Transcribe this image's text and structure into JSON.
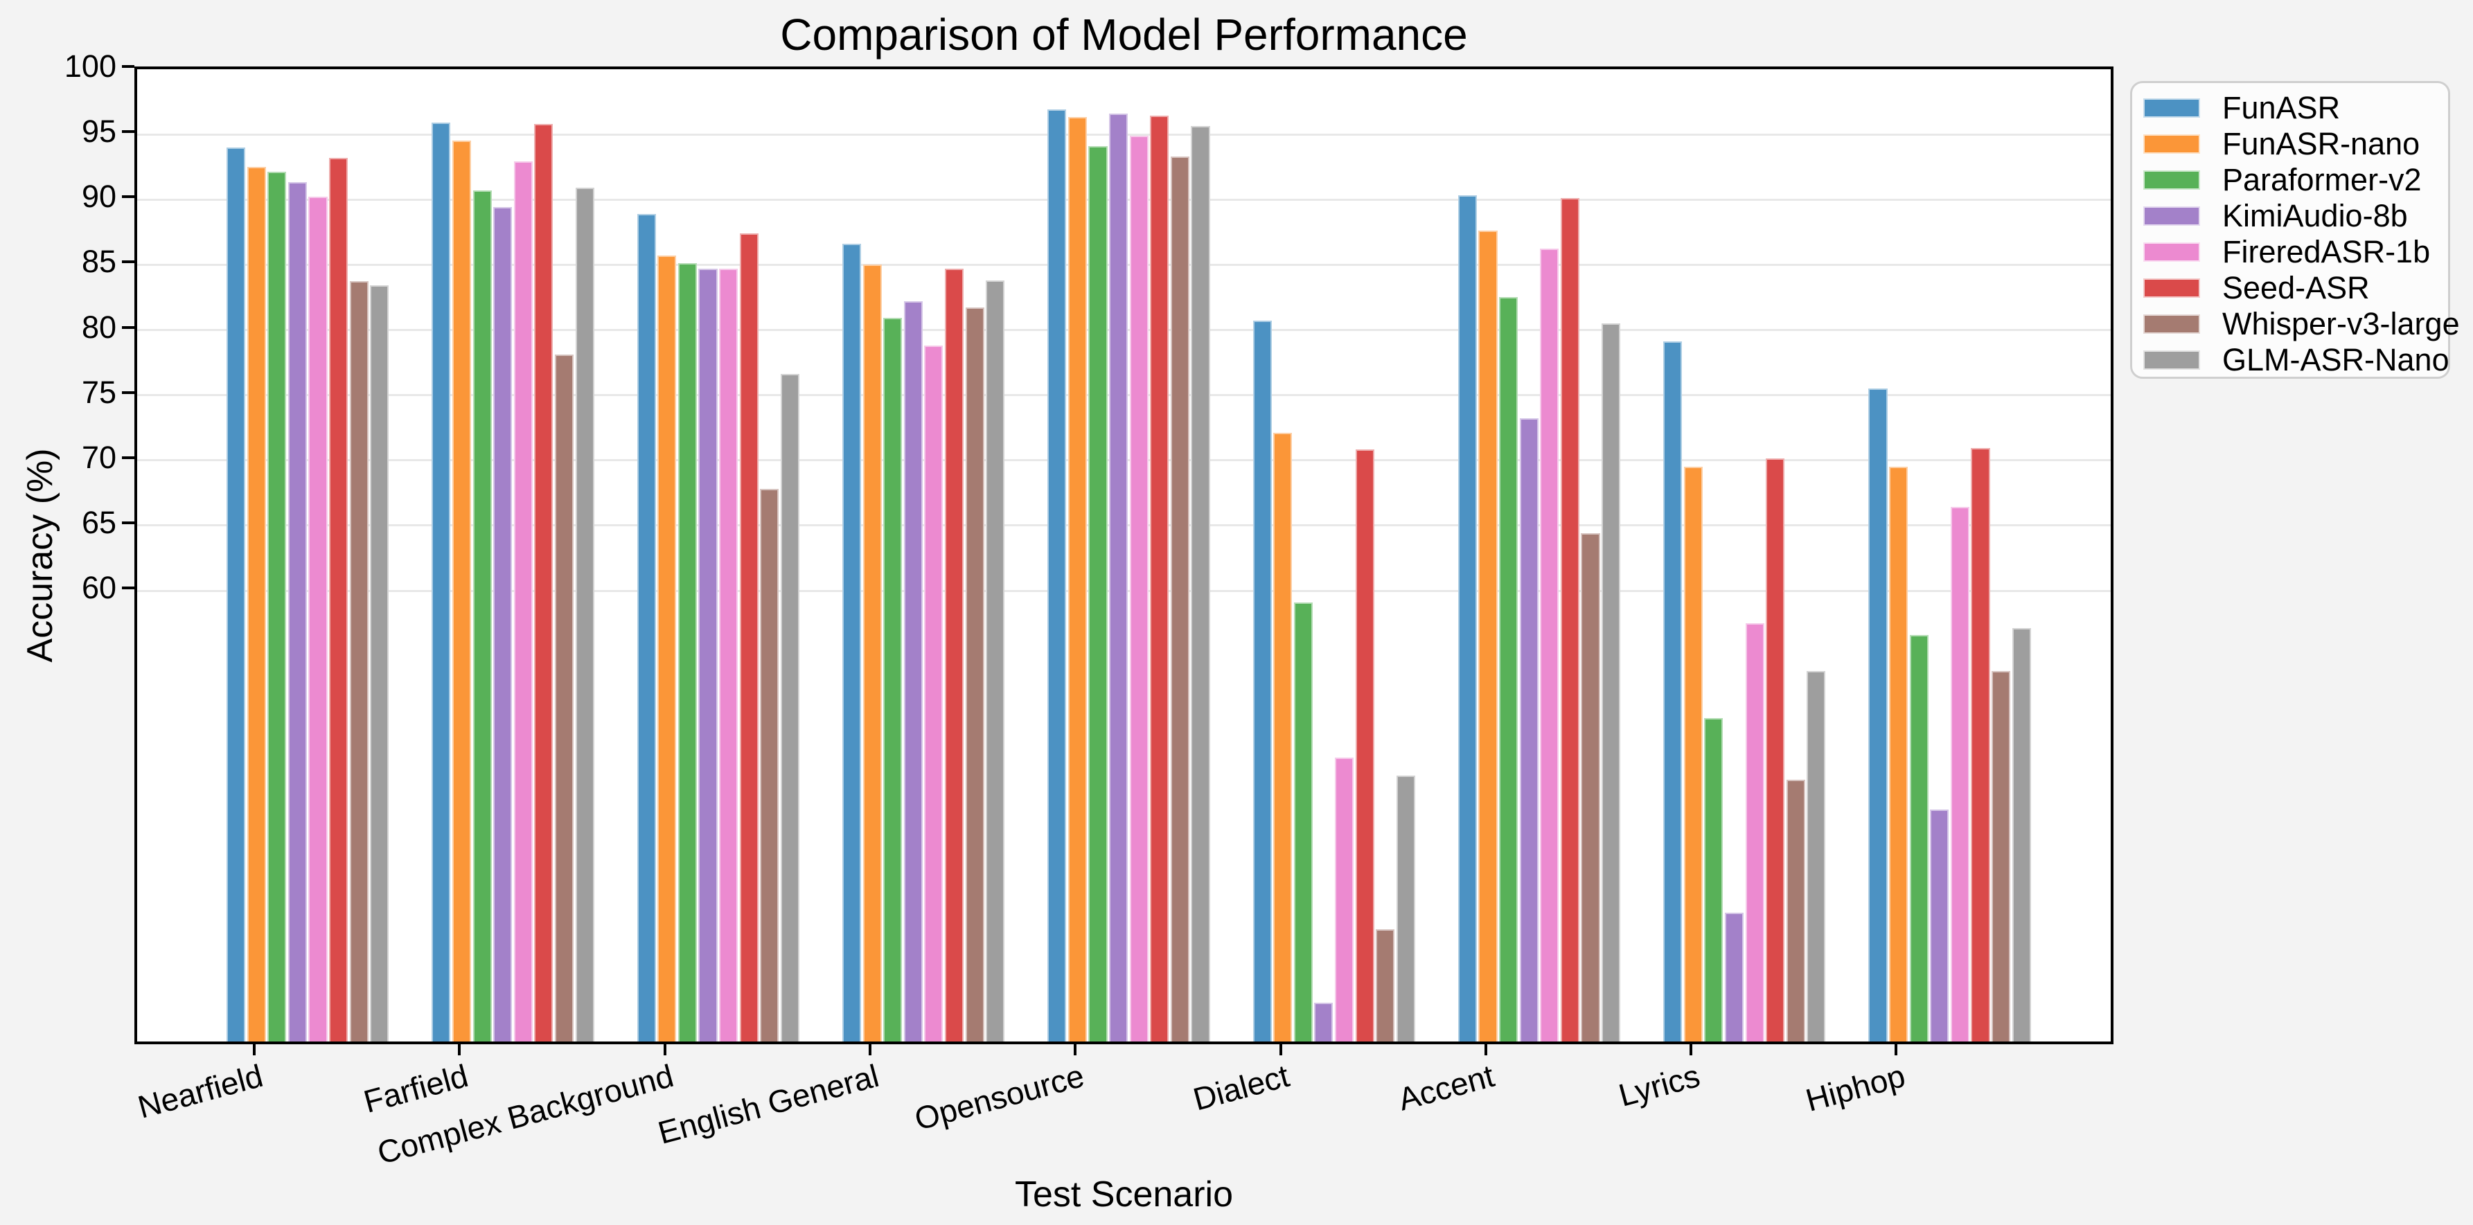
{
  "title": "Comparison of Model Performance",
  "y_axis": {
    "label": "Accuracy (%)",
    "tick_labels": [
      "100",
      "95",
      "90",
      "85",
      "80",
      "75",
      "70",
      "65",
      "60"
    ]
  },
  "x_axis": {
    "label": "Test Scenario"
  },
  "figure_colors": {
    "background": "#f3f3f3",
    "plot_background": "#ffffff",
    "grid": "#e8e8e8",
    "frame": "#000000",
    "legend_background": "#fcfcfc",
    "legend_border": "#cfcfcf"
  },
  "chart_data": {
    "type": "bar",
    "title": "Comparison of Model Performance",
    "xlabel": "Test Scenario",
    "ylabel": "Accuracy (%)",
    "ylim": [
      25,
      100
    ],
    "yticks": [
      60,
      65,
      70,
      75,
      80,
      85,
      90,
      95,
      100
    ],
    "grid": true,
    "legend_position": "upper right, outside axes",
    "x_tick_rotation_deg": 15,
    "categories": [
      "Nearfield",
      "Farfield",
      "Complex Background",
      "English General",
      "Opensource",
      "Dialect",
      "Accent",
      "Lyrics",
      "Hiphop"
    ],
    "series": [
      {
        "name": "FunASR",
        "color": "#4c92c3",
        "values": [
          93.6,
          95.5,
          88.5,
          86.2,
          96.5,
          80.3,
          89.9,
          78.7,
          75.1
        ]
      },
      {
        "name": "FunASR-nano",
        "color": "#fb9638",
        "values": [
          92.1,
          94.1,
          85.3,
          84.6,
          95.9,
          71.7,
          87.2,
          69.1,
          69.1
        ]
      },
      {
        "name": "Paraformer-v2",
        "color": "#58b158",
        "values": [
          91.7,
          90.3,
          84.7,
          80.5,
          93.7,
          58.7,
          82.1,
          49.8,
          56.2
        ]
      },
      {
        "name": "KimiAudio-8b",
        "color": "#a381c9",
        "values": [
          90.9,
          89.0,
          84.3,
          81.8,
          96.2,
          28.0,
          72.8,
          34.9,
          42.8
        ]
      },
      {
        "name": "FireredASR-1b",
        "color": "#ec8ad0",
        "values": [
          89.8,
          92.5,
          84.3,
          78.4,
          94.5,
          46.8,
          85.8,
          57.1,
          66.0
        ]
      },
      {
        "name": "Seed-ASR",
        "color": "#da4a4a",
        "values": [
          92.8,
          95.4,
          87.0,
          84.3,
          96.0,
          70.4,
          89.7,
          69.7,
          70.5
        ]
      },
      {
        "name": "Whisper-v3-large",
        "color": "#a57b71",
        "values": [
          83.3,
          77.7,
          67.4,
          81.3,
          92.9,
          33.6,
          64.0,
          45.1,
          53.4
        ]
      },
      {
        "name": "GLM-ASR-Nano",
        "color": "#9e9e9e",
        "values": [
          83.0,
          90.5,
          76.2,
          83.4,
          95.2,
          45.4,
          80.1,
          53.4,
          56.7
        ]
      }
    ]
  }
}
